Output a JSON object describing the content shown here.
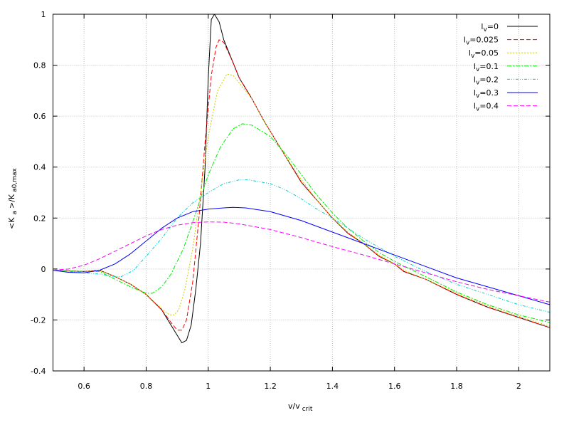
{
  "chart_data": {
    "type": "line",
    "xlabel": "v/v",
    "xlabel_sub": "crit",
    "ylabel_parts": [
      "<K",
      "a",
      ">/K",
      "a0,max"
    ],
    "xlim": [
      0.5,
      2.1
    ],
    "ylim": [
      -0.4,
      1
    ],
    "xticks": [
      0.6,
      0.8,
      1,
      1.2,
      1.4,
      1.6,
      1.8,
      2
    ],
    "xtick_labels": [
      "0.6",
      "0.8",
      "1",
      "1.2",
      "1.4",
      "1.6",
      "1.8",
      "2"
    ],
    "yticks": [
      -0.4,
      -0.2,
      0,
      0.2,
      0.4,
      0.6,
      0.8,
      1
    ],
    "ytick_labels": [
      "-0.4",
      "-0.2",
      "0",
      "0.2",
      "0.4",
      "0.6",
      "0.8",
      "1"
    ],
    "grid": true,
    "legend_placement": "top-right",
    "series": [
      {
        "name": "l_v=0",
        "label_main": "l",
        "label_sub": "v",
        "label_rest": "=0",
        "color": "#000000",
        "dash": "",
        "points": [
          [
            0.5,
            -0.005
          ],
          [
            0.6,
            -0.01
          ],
          [
            0.65,
            -0.005
          ],
          [
            0.7,
            -0.03
          ],
          [
            0.75,
            -0.06
          ],
          [
            0.8,
            -0.1
          ],
          [
            0.85,
            -0.16
          ],
          [
            0.88,
            -0.22
          ],
          [
            0.9,
            -0.26
          ],
          [
            0.915,
            -0.29
          ],
          [
            0.93,
            -0.28
          ],
          [
            0.945,
            -0.22
          ],
          [
            0.96,
            -0.08
          ],
          [
            0.975,
            0.1
          ],
          [
            0.99,
            0.4
          ],
          [
            1.0,
            0.75
          ],
          [
            1.01,
            0.98
          ],
          [
            1.02,
            1.0
          ],
          [
            1.035,
            0.97
          ],
          [
            1.05,
            0.9
          ],
          [
            1.08,
            0.81
          ],
          [
            1.1,
            0.75
          ],
          [
            1.14,
            0.67
          ],
          [
            1.18,
            0.58
          ],
          [
            1.2,
            0.54
          ],
          [
            1.25,
            0.44
          ],
          [
            1.3,
            0.34
          ],
          [
            1.35,
            0.27
          ],
          [
            1.4,
            0.2
          ],
          [
            1.45,
            0.14
          ],
          [
            1.5,
            0.1
          ],
          [
            1.55,
            0.05
          ],
          [
            1.6,
            0.02
          ],
          [
            1.63,
            -0.01
          ],
          [
            1.7,
            -0.04
          ],
          [
            1.8,
            -0.1
          ],
          [
            1.9,
            -0.15
          ],
          [
            2.0,
            -0.19
          ],
          [
            2.1,
            -0.23
          ]
        ]
      },
      {
        "name": "l_v=0.025",
        "label_main": "l",
        "label_sub": "v",
        "label_rest": "=0.025",
        "color": "#ff0000",
        "dash": "6,3",
        "points": [
          [
            0.5,
            -0.005
          ],
          [
            0.6,
            -0.01
          ],
          [
            0.65,
            -0.005
          ],
          [
            0.7,
            -0.03
          ],
          [
            0.75,
            -0.06
          ],
          [
            0.8,
            -0.1
          ],
          [
            0.85,
            -0.16
          ],
          [
            0.88,
            -0.21
          ],
          [
            0.9,
            -0.24
          ],
          [
            0.915,
            -0.24
          ],
          [
            0.93,
            -0.2
          ],
          [
            0.95,
            -0.05
          ],
          [
            0.97,
            0.2
          ],
          [
            0.99,
            0.5
          ],
          [
            1.01,
            0.76
          ],
          [
            1.025,
            0.87
          ],
          [
            1.035,
            0.9
          ],
          [
            1.05,
            0.89
          ],
          [
            1.08,
            0.81
          ],
          [
            1.1,
            0.75
          ],
          [
            1.14,
            0.67
          ],
          [
            1.18,
            0.58
          ],
          [
            1.2,
            0.54
          ],
          [
            1.25,
            0.44
          ],
          [
            1.3,
            0.34
          ],
          [
            1.35,
            0.27
          ],
          [
            1.4,
            0.2
          ],
          [
            1.45,
            0.14
          ],
          [
            1.5,
            0.1
          ],
          [
            1.55,
            0.05
          ],
          [
            1.6,
            0.02
          ],
          [
            1.63,
            -0.01
          ],
          [
            1.7,
            -0.04
          ],
          [
            1.8,
            -0.1
          ],
          [
            1.9,
            -0.15
          ],
          [
            2.0,
            -0.19
          ],
          [
            2.1,
            -0.23
          ]
        ]
      },
      {
        "name": "l_v=0.05",
        "label_main": "l",
        "label_sub": "v",
        "label_rest": "=0.05",
        "color": "#cccc00",
        "dash": "2,2",
        "points": [
          [
            0.5,
            -0.005
          ],
          [
            0.6,
            -0.01
          ],
          [
            0.65,
            -0.005
          ],
          [
            0.7,
            -0.03
          ],
          [
            0.75,
            -0.06
          ],
          [
            0.8,
            -0.1
          ],
          [
            0.85,
            -0.155
          ],
          [
            0.875,
            -0.18
          ],
          [
            0.89,
            -0.18
          ],
          [
            0.905,
            -0.16
          ],
          [
            0.925,
            -0.08
          ],
          [
            0.95,
            0.08
          ],
          [
            0.975,
            0.3
          ],
          [
            1.0,
            0.52
          ],
          [
            1.03,
            0.7
          ],
          [
            1.06,
            0.765
          ],
          [
            1.08,
            0.76
          ],
          [
            1.1,
            0.73
          ],
          [
            1.14,
            0.67
          ],
          [
            1.18,
            0.58
          ],
          [
            1.2,
            0.54
          ],
          [
            1.25,
            0.44
          ],
          [
            1.3,
            0.35
          ],
          [
            1.35,
            0.27
          ],
          [
            1.4,
            0.2
          ],
          [
            1.45,
            0.145
          ],
          [
            1.5,
            0.1
          ],
          [
            1.55,
            0.055
          ],
          [
            1.6,
            0.02
          ],
          [
            1.63,
            -0.005
          ],
          [
            1.7,
            -0.04
          ],
          [
            1.8,
            -0.095
          ],
          [
            1.9,
            -0.145
          ],
          [
            2.0,
            -0.185
          ],
          [
            2.1,
            -0.225
          ]
        ]
      },
      {
        "name": "l_v=0.1",
        "label_main": "l",
        "label_sub": "v",
        "label_rest": "=0.1",
        "color": "#00ee00",
        "dash": "6,2,2,2",
        "points": [
          [
            0.5,
            -0.005
          ],
          [
            0.6,
            -0.01
          ],
          [
            0.65,
            -0.01
          ],
          [
            0.7,
            -0.04
          ],
          [
            0.75,
            -0.07
          ],
          [
            0.8,
            -0.095
          ],
          [
            0.82,
            -0.095
          ],
          [
            0.85,
            -0.07
          ],
          [
            0.88,
            -0.02
          ],
          [
            0.92,
            0.08
          ],
          [
            0.96,
            0.22
          ],
          [
            1.0,
            0.37
          ],
          [
            1.04,
            0.48
          ],
          [
            1.08,
            0.55
          ],
          [
            1.11,
            0.57
          ],
          [
            1.14,
            0.565
          ],
          [
            1.2,
            0.52
          ],
          [
            1.25,
            0.45
          ],
          [
            1.3,
            0.37
          ],
          [
            1.35,
            0.29
          ],
          [
            1.4,
            0.22
          ],
          [
            1.45,
            0.16
          ],
          [
            1.5,
            0.11
          ],
          [
            1.55,
            0.065
          ],
          [
            1.6,
            0.03
          ],
          [
            1.7,
            -0.03
          ],
          [
            1.8,
            -0.09
          ],
          [
            1.9,
            -0.14
          ],
          [
            2.0,
            -0.18
          ],
          [
            2.1,
            -0.21
          ]
        ]
      },
      {
        "name": "l_v=0.2",
        "label_main": "l",
        "label_sub": "v",
        "label_rest": "=0.2",
        "color": "#00cccc",
        "dash": "4,2,1,2,1,2",
        "points": [
          [
            0.5,
            -0.005
          ],
          [
            0.6,
            -0.015
          ],
          [
            0.65,
            -0.02
          ],
          [
            0.7,
            -0.03
          ],
          [
            0.72,
            -0.03
          ],
          [
            0.76,
            -0.005
          ],
          [
            0.8,
            0.05
          ],
          [
            0.85,
            0.12
          ],
          [
            0.9,
            0.2
          ],
          [
            0.95,
            0.26
          ],
          [
            1.0,
            0.3
          ],
          [
            1.05,
            0.335
          ],
          [
            1.1,
            0.35
          ],
          [
            1.13,
            0.35
          ],
          [
            1.2,
            0.335
          ],
          [
            1.25,
            0.31
          ],
          [
            1.3,
            0.275
          ],
          [
            1.35,
            0.235
          ],
          [
            1.4,
            0.2
          ],
          [
            1.45,
            0.16
          ],
          [
            1.5,
            0.12
          ],
          [
            1.55,
            0.085
          ],
          [
            1.6,
            0.05
          ],
          [
            1.7,
            -0.01
          ],
          [
            1.8,
            -0.06
          ],
          [
            1.9,
            -0.1
          ],
          [
            2.0,
            -0.14
          ],
          [
            2.1,
            -0.17
          ]
        ]
      },
      {
        "name": "l_v=0.3",
        "label_main": "l",
        "label_sub": "v",
        "label_rest": "=0.3",
        "color": "#0000ff",
        "dash": "",
        "points": [
          [
            0.5,
            -0.005
          ],
          [
            0.55,
            -0.013
          ],
          [
            0.6,
            -0.015
          ],
          [
            0.65,
            -0.005
          ],
          [
            0.7,
            0.02
          ],
          [
            0.75,
            0.06
          ],
          [
            0.8,
            0.11
          ],
          [
            0.85,
            0.16
          ],
          [
            0.9,
            0.2
          ],
          [
            0.95,
            0.225
          ],
          [
            1.0,
            0.235
          ],
          [
            1.05,
            0.24
          ],
          [
            1.08,
            0.242
          ],
          [
            1.12,
            0.24
          ],
          [
            1.2,
            0.225
          ],
          [
            1.3,
            0.19
          ],
          [
            1.4,
            0.145
          ],
          [
            1.5,
            0.1
          ],
          [
            1.6,
            0.055
          ],
          [
            1.7,
            0.01
          ],
          [
            1.8,
            -0.035
          ],
          [
            1.9,
            -0.07
          ],
          [
            2.0,
            -0.105
          ],
          [
            2.1,
            -0.14
          ]
        ]
      },
      {
        "name": "l_v=0.4",
        "label_main": "l",
        "label_sub": "v",
        "label_rest": "=0.4",
        "color": "#ff00ff",
        "dash": "6,3",
        "points": [
          [
            0.5,
            -0.005
          ],
          [
            0.55,
            0.0
          ],
          [
            0.6,
            0.015
          ],
          [
            0.65,
            0.04
          ],
          [
            0.7,
            0.07
          ],
          [
            0.75,
            0.1
          ],
          [
            0.8,
            0.13
          ],
          [
            0.85,
            0.155
          ],
          [
            0.9,
            0.172
          ],
          [
            0.95,
            0.182
          ],
          [
            1.0,
            0.185
          ],
          [
            1.05,
            0.184
          ],
          [
            1.1,
            0.177
          ],
          [
            1.2,
            0.155
          ],
          [
            1.3,
            0.123
          ],
          [
            1.4,
            0.088
          ],
          [
            1.5,
            0.055
          ],
          [
            1.6,
            0.02
          ],
          [
            1.7,
            -0.015
          ],
          [
            1.8,
            -0.05
          ],
          [
            1.9,
            -0.08
          ],
          [
            2.0,
            -0.105
          ],
          [
            2.1,
            -0.13
          ]
        ]
      }
    ]
  }
}
